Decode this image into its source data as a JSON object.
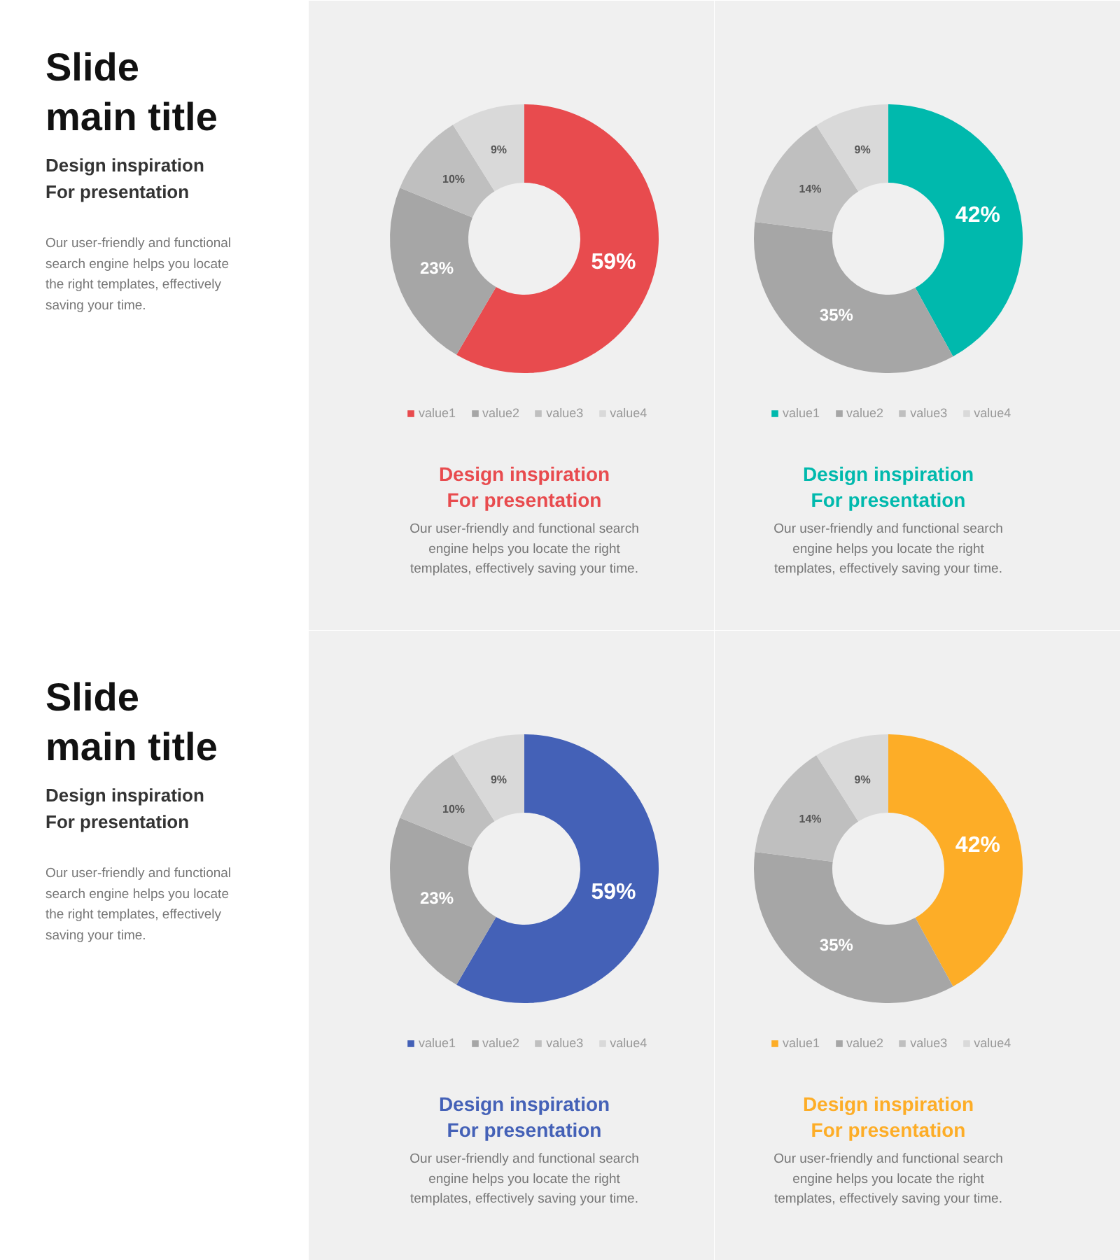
{
  "chart_data": [
    {
      "type": "other",
      "title": "Slide\nmain title",
      "subtitle": "Design inspiration\nFor presentation",
      "annotations": [
        "Our user-friendly and functional\nsearch engine helps you locate\nthe right templates, effectively\nsaving your time."
      ]
    },
    {
      "type": "donut",
      "title": "Design inspiration\nFor presentation",
      "categories": [
        "value1",
        "value2",
        "value3",
        "value4"
      ],
      "values": [
        59,
        23,
        10,
        9
      ],
      "colors": [
        "#e84b4e",
        "#a6a6a6",
        "#bfbfbf",
        "#d9d9d9"
      ],
      "value_labels": [
        "59%",
        "23%",
        "10%",
        "9%"
      ],
      "legend": "bottom",
      "annotations": [
        "Our user-friendly and functional search\nengine helps you locate the right\ntemplates, effectively saving your time."
      ]
    },
    {
      "type": "donut",
      "title": "Design inspiration\nFor presentation",
      "categories": [
        "value1",
        "value2",
        "value3",
        "value4"
      ],
      "values": [
        42,
        35,
        14,
        9
      ],
      "colors": [
        "#00b9ad",
        "#a6a6a6",
        "#bfbfbf",
        "#d9d9d9"
      ],
      "value_labels": [
        "42%",
        "35%",
        "14%",
        "9%"
      ],
      "legend": "bottom",
      "annotations": [
        "Our user-friendly and functional search\nengine helps you locate the right\ntemplates, effectively saving your time."
      ]
    },
    {
      "type": "other",
      "title": "Slide\nmain title",
      "subtitle": "Design inspiration\nFor presentation",
      "annotations": [
        "Our user-friendly and functional\nsearch engine helps you locate\nthe right templates, effectively\nsaving your time."
      ]
    },
    {
      "type": "donut",
      "title": "Design inspiration\nFor presentation",
      "categories": [
        "value1",
        "value2",
        "value3",
        "value4"
      ],
      "values": [
        59,
        23,
        10,
        9
      ],
      "colors": [
        "#4461b7",
        "#a6a6a6",
        "#bfbfbf",
        "#d9d9d9"
      ],
      "value_labels": [
        "59%",
        "23%",
        "10%",
        "9%"
      ],
      "legend": "bottom",
      "annotations": [
        "Our user-friendly and functional search\nengine helps you locate the right\ntemplates, effectively saving your time."
      ]
    },
    {
      "type": "donut",
      "title": "Design inspiration\nFor presentation",
      "categories": [
        "value1",
        "value2",
        "value3",
        "value4"
      ],
      "values": [
        42,
        35,
        14,
        9
      ],
      "colors": [
        "#fdad27",
        "#a6a6a6",
        "#bfbfbf",
        "#d9d9d9"
      ],
      "value_labels": [
        "42%",
        "35%",
        "14%",
        "9%"
      ],
      "legend": "bottom",
      "annotations": [
        "Our user-friendly and functional search\nengine helps you locate the right\ntemplates, effectively saving your time."
      ]
    }
  ]
}
